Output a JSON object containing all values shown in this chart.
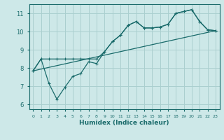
{
  "xlabel": "Humidex (Indice chaleur)",
  "bg_color": "#cde8e8",
  "grid_color": "#aacfcf",
  "line_color": "#1a6b6b",
  "xlim": [
    -0.5,
    23.5
  ],
  "ylim": [
    5.75,
    11.5
  ],
  "xticks": [
    0,
    1,
    2,
    3,
    4,
    5,
    6,
    7,
    8,
    9,
    10,
    11,
    12,
    13,
    14,
    15,
    16,
    17,
    18,
    19,
    20,
    21,
    22,
    23
  ],
  "yticks": [
    6,
    7,
    8,
    9,
    10,
    11
  ],
  "line1_x": [
    0,
    1,
    2,
    3,
    4,
    5,
    6,
    7,
    8,
    9,
    10,
    11,
    12,
    13,
    14,
    15,
    16,
    17,
    18,
    19,
    20,
    21,
    22,
    23
  ],
  "line1_y": [
    7.85,
    8.5,
    8.5,
    8.5,
    8.5,
    8.5,
    8.5,
    8.5,
    8.5,
    8.9,
    9.45,
    9.8,
    10.35,
    10.55,
    10.2,
    10.2,
    10.25,
    10.4,
    11.0,
    11.1,
    11.2,
    10.55,
    10.1,
    10.05
  ],
  "line2_x": [
    0,
    1,
    2,
    3,
    4,
    5,
    6,
    7,
    8,
    9,
    10,
    11,
    12,
    13,
    14,
    15,
    16,
    17,
    18,
    19,
    20,
    21,
    22,
    23
  ],
  "line2_y": [
    7.85,
    8.5,
    7.15,
    6.3,
    6.95,
    7.55,
    7.7,
    8.35,
    8.25,
    8.9,
    9.45,
    9.8,
    10.35,
    10.55,
    10.2,
    10.2,
    10.25,
    10.4,
    11.0,
    11.1,
    11.2,
    10.55,
    10.1,
    10.05
  ],
  "line3_x": [
    0,
    23
  ],
  "line3_y": [
    7.85,
    10.05
  ]
}
